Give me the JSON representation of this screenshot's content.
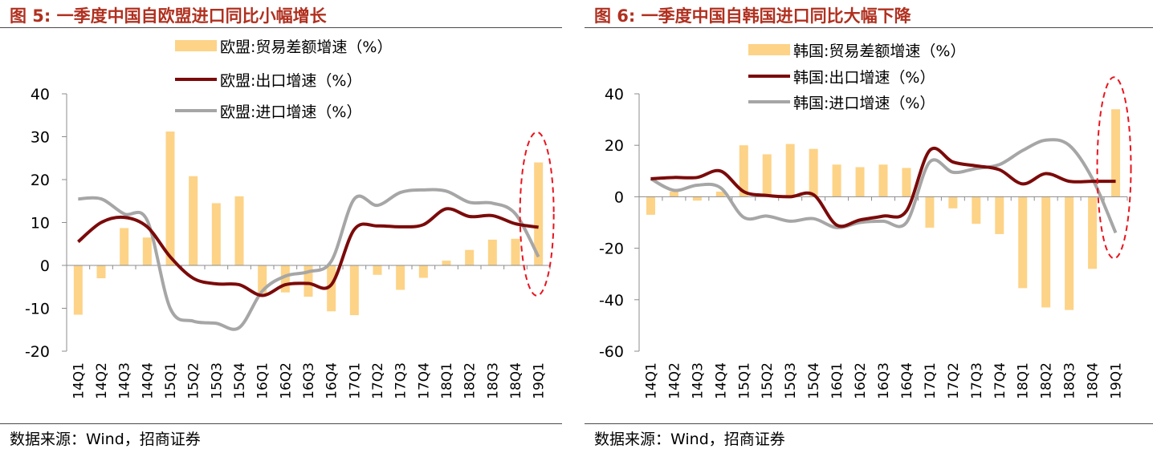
{
  "charts": [
    {
      "title": "图 5:  一季度中国自欧盟进口同比小幅增长",
      "source": "数据来源：Wind，招商证券"
    },
    {
      "title": "图 6:  一季度中国自韩国进口同比大幅下降",
      "source": "数据来源：Wind，招商证券"
    }
  ],
  "colors": {
    "bar": "#fdd387",
    "export_line": "#7b0a0a",
    "import_line": "#a6a6a6",
    "highlight": "#e8151e",
    "title": "#b0301f"
  },
  "chart_data": [
    {
      "type": "bar+line",
      "title": "图 5:  一季度中国自欧盟进口同比小幅增长",
      "categories": [
        "14Q1",
        "14Q2",
        "14Q3",
        "14Q4",
        "15Q1",
        "15Q2",
        "15Q3",
        "15Q4",
        "16Q1",
        "16Q2",
        "16Q3",
        "16Q4",
        "17Q1",
        "17Q2",
        "17Q3",
        "17Q4",
        "18Q1",
        "18Q2",
        "18Q3",
        "18Q4",
        "19Q1"
      ],
      "ylim": [
        -20,
        40
      ],
      "yticks": [
        40,
        30,
        20,
        10,
        0,
        -10,
        -20
      ],
      "series": [
        {
          "name": "欧盟:贸易差额增速（%）",
          "kind": "bar",
          "values": [
            -11.5,
            -3,
            8.7,
            6.5,
            31.2,
            20.8,
            14.5,
            16.1,
            -6.5,
            -6.3,
            -7.3,
            -10.7,
            -11.6,
            -2.2,
            -5.7,
            -2.9,
            1.1,
            3.6,
            6.0,
            6.2,
            24.0
          ]
        },
        {
          "name": "欧盟:出口增速（%）",
          "kind": "line",
          "values": [
            5.5,
            10,
            11.2,
            9,
            2,
            -3,
            -4.3,
            -4.5,
            -7,
            -4.5,
            -4.2,
            -4.5,
            8.4,
            9.2,
            9.0,
            9.5,
            13.2,
            11.4,
            11.6,
            9.7,
            8.9
          ]
        },
        {
          "name": "欧盟:进口增速（%）",
          "kind": "line",
          "values": [
            15.5,
            15.5,
            12,
            10.5,
            -10,
            -13,
            -13.5,
            -14.5,
            -6,
            -2.5,
            -1.5,
            1,
            15.5,
            14,
            17,
            17.6,
            17.3,
            14.7,
            14.5,
            12,
            2
          ]
        }
      ],
      "annotation": "dashed ellipse around 19Q1"
    },
    {
      "type": "bar+line",
      "title": "图 6:  一季度中国自韩国进口同比大幅下降",
      "categories": [
        "14Q1",
        "14Q2",
        "14Q3",
        "14Q4",
        "15Q1",
        "15Q2",
        "15Q3",
        "15Q4",
        "16Q1",
        "16Q2",
        "16Q3",
        "16Q4",
        "17Q1",
        "17Q2",
        "17Q3",
        "17Q4",
        "18Q1",
        "18Q2",
        "18Q3",
        "18Q4",
        "19Q1"
      ],
      "ylim": [
        -60,
        40
      ],
      "yticks": [
        40,
        20,
        0,
        -20,
        -40,
        -60
      ],
      "series": [
        {
          "name": "韩国:贸易差额增速（%）",
          "kind": "bar",
          "values": [
            -7,
            2,
            -1.5,
            2,
            20,
            16.5,
            20.5,
            18.6,
            12.5,
            11.5,
            12.5,
            11.2,
            -12,
            -4.5,
            -10.5,
            -14.5,
            -35.5,
            -43,
            -44,
            -28,
            34
          ]
        },
        {
          "name": "韩国:出口增速（%）",
          "kind": "line",
          "values": [
            7,
            7.5,
            7.5,
            10,
            2,
            0.5,
            0,
            0.8,
            -11,
            -9,
            -7.5,
            -5.5,
            18,
            13.5,
            12,
            10.5,
            5,
            9,
            6,
            6,
            6
          ]
        },
        {
          "name": "韩国:进口增速（%）",
          "kind": "line",
          "values": [
            7,
            2.5,
            4.5,
            3.5,
            -8,
            -7.5,
            -9.5,
            -8.5,
            -12,
            -10,
            -9.5,
            -10,
            13.5,
            9.5,
            11,
            12.5,
            18,
            22,
            20,
            7,
            -14
          ]
        }
      ],
      "annotation": "dashed ellipse around 19Q1"
    }
  ]
}
